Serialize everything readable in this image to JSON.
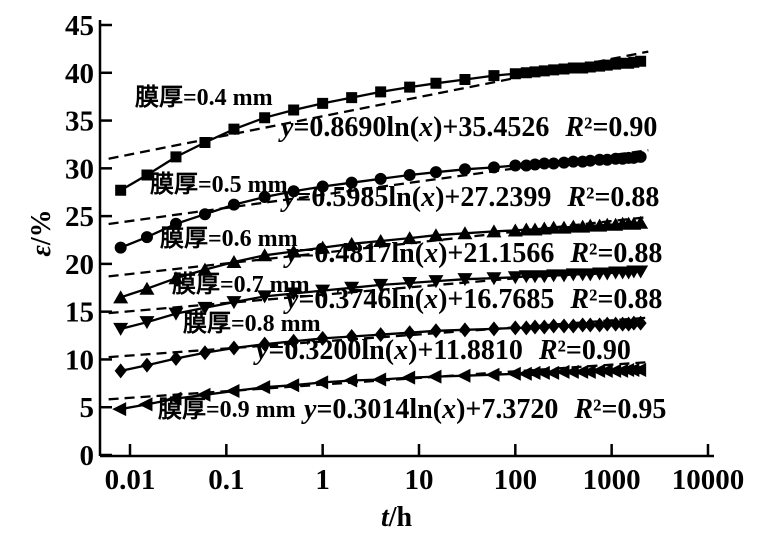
{
  "figure": {
    "background": "#ffffff",
    "ink": "#000000"
  },
  "chart_data": {
    "type": "line",
    "x_scale": "log",
    "title": "",
    "xlabel": "t/h",
    "ylabel": "ε/%",
    "xlim": [
      0.005,
      10000
    ],
    "ylim": [
      0,
      45
    ],
    "grid": false,
    "legend": "inline-labels",
    "fit_line_style": "dashed",
    "x_ticks": [
      "0.01",
      "0.1",
      "1",
      "10",
      "100",
      "1000",
      "10000"
    ],
    "y_ticks": [
      "0",
      "5",
      "10",
      "15",
      "20",
      "25",
      "30",
      "35",
      "40",
      "45"
    ],
    "x": [
      0.008,
      0.015,
      0.03,
      0.06,
      0.12,
      0.25,
      0.5,
      1,
      2,
      4,
      8,
      15,
      30,
      60,
      100,
      130,
      160,
      200,
      250,
      320,
      400,
      500,
      600,
      750,
      900,
      1100,
      1300,
      1500,
      1700,
      2000
    ],
    "series": [
      {
        "name": "膜厚=0.4 mm",
        "marker": "square",
        "values": [
          27.7,
          29.3,
          31.2,
          32.7,
          34.1,
          35.3,
          36.1,
          36.8,
          37.4,
          38.0,
          38.5,
          38.9,
          39.3,
          39.7,
          39.9,
          40.0,
          40.1,
          40.2,
          40.3,
          40.4,
          40.5,
          40.5,
          40.6,
          40.7,
          40.8,
          40.9,
          41.0,
          41.0,
          41.1,
          41.2
        ],
        "fit": {
          "slope": 0.869,
          "intercept": 35.4526,
          "equation": "y=0.8690ln(x)+35.4526",
          "r2_label": "R²=0.90",
          "r2": 0.9
        }
      },
      {
        "name": "膜厚=0.5 mm",
        "marker": "circle",
        "values": [
          21.7,
          22.8,
          24.2,
          25.2,
          26.2,
          27.0,
          27.6,
          28.1,
          28.5,
          28.9,
          29.3,
          29.6,
          29.9,
          30.1,
          30.3,
          30.3,
          30.4,
          30.5,
          30.5,
          30.6,
          30.7,
          30.7,
          30.8,
          30.9,
          30.9,
          31.0,
          31.0,
          31.1,
          31.1,
          31.2
        ],
        "fit": {
          "slope": 0.5985,
          "intercept": 27.2399,
          "equation": "y=0.5985ln(x)+27.2399",
          "r2_label": "R²=0.88",
          "r2": 0.88
        }
      },
      {
        "name": "膜厚=0.6 mm",
        "marker": "triangle-up",
        "values": [
          16.5,
          17.4,
          18.5,
          19.4,
          20.2,
          20.9,
          21.3,
          21.7,
          22.1,
          22.4,
          22.7,
          23.0,
          23.2,
          23.4,
          23.5,
          23.6,
          23.6,
          23.7,
          23.8,
          23.8,
          23.9,
          23.9,
          24.0,
          24.0,
          24.1,
          24.1,
          24.2,
          24.2,
          24.2,
          24.3
        ],
        "fit": {
          "slope": 0.4817,
          "intercept": 21.1566,
          "equation": "y=0.4817ln(x)+21.1566",
          "r2_label": "R²=0.88",
          "r2": 0.88
        }
      },
      {
        "name": "膜厚=0.7 mm",
        "marker": "triangle-down",
        "values": [
          13.2,
          13.9,
          14.8,
          15.4,
          16.0,
          16.6,
          16.9,
          17.2,
          17.5,
          17.8,
          18.0,
          18.2,
          18.4,
          18.5,
          18.6,
          18.7,
          18.7,
          18.7,
          18.8,
          18.8,
          18.9,
          18.9,
          18.9,
          19.0,
          19.0,
          19.1,
          19.1,
          19.1,
          19.2,
          19.2
        ],
        "fit": {
          "slope": 0.3746,
          "intercept": 16.7685,
          "equation": "y=0.3746ln(x)+16.7685",
          "r2_label": "R²=0.88",
          "r2": 0.88
        }
      },
      {
        "name": "膜厚=0.8 mm",
        "marker": "diamond",
        "values": [
          8.8,
          9.4,
          10.1,
          10.7,
          11.2,
          11.6,
          11.9,
          12.2,
          12.4,
          12.6,
          12.8,
          13.0,
          13.1,
          13.2,
          13.3,
          13.3,
          13.4,
          13.4,
          13.5,
          13.5,
          13.5,
          13.6,
          13.6,
          13.6,
          13.7,
          13.7,
          13.7,
          13.7,
          13.8,
          13.8
        ],
        "fit": {
          "slope": 0.32,
          "intercept": 11.881,
          "equation": "y=0.3200ln(x)+11.8810",
          "r2_label": "R²=0.90",
          "r2": 0.9
        }
      },
      {
        "name": "膜厚=0.9 mm",
        "marker": "triangle-left",
        "values": [
          4.8,
          5.3,
          5.9,
          6.3,
          6.7,
          7.1,
          7.3,
          7.6,
          7.8,
          7.9,
          8.1,
          8.2,
          8.3,
          8.4,
          8.5,
          8.5,
          8.6,
          8.6,
          8.6,
          8.7,
          8.7,
          8.7,
          8.7,
          8.8,
          8.8,
          8.8,
          8.8,
          8.9,
          8.9,
          8.9
        ],
        "fit": {
          "slope": 0.3014,
          "intercept": 7.372,
          "equation": "y=0.3014ln(x)+7.3720",
          "r2_label": "R²=0.95",
          "r2": 0.95
        }
      }
    ]
  }
}
